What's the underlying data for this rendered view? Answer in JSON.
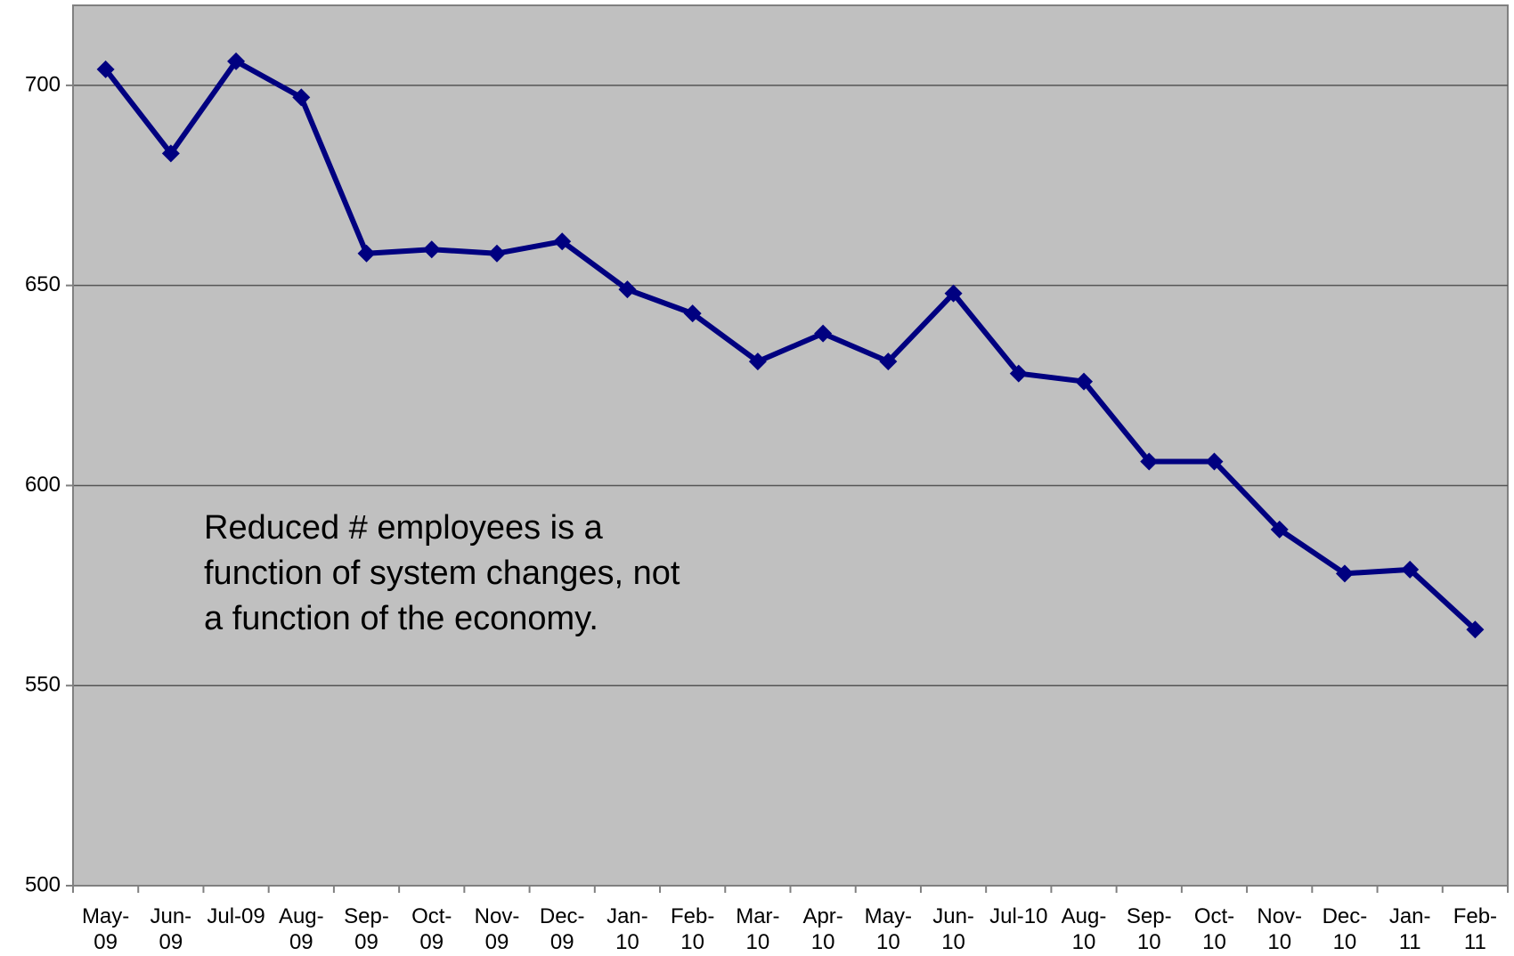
{
  "chart_data": {
    "type": "line",
    "categories": [
      "May-09",
      "Jun-09",
      "Jul-09",
      "Aug-09",
      "Sep-09",
      "Oct-09",
      "Nov-09",
      "Dec-09",
      "Jan-10",
      "Feb-10",
      "Mar-10",
      "Apr-10",
      "May-10",
      "Jun-10",
      "Jul-10",
      "Aug-10",
      "Sep-10",
      "Oct-10",
      "Nov-10",
      "Dec-10",
      "Jan-11",
      "Feb-11"
    ],
    "series": [
      {
        "color": "#000080",
        "values": [
          704,
          683,
          706,
          697,
          658,
          659,
          658,
          661,
          649,
          643,
          631,
          638,
          631,
          648,
          628,
          626,
          606,
          606,
          589,
          578,
          579,
          564
        ]
      }
    ],
    "ylim": [
      500,
      720
    ],
    "yticks": [
      500,
      550,
      600,
      650,
      700
    ],
    "grid": true,
    "annotation": [
      "Reduced # employees is a",
      "function of system changes, not",
      "a function of the economy."
    ]
  }
}
